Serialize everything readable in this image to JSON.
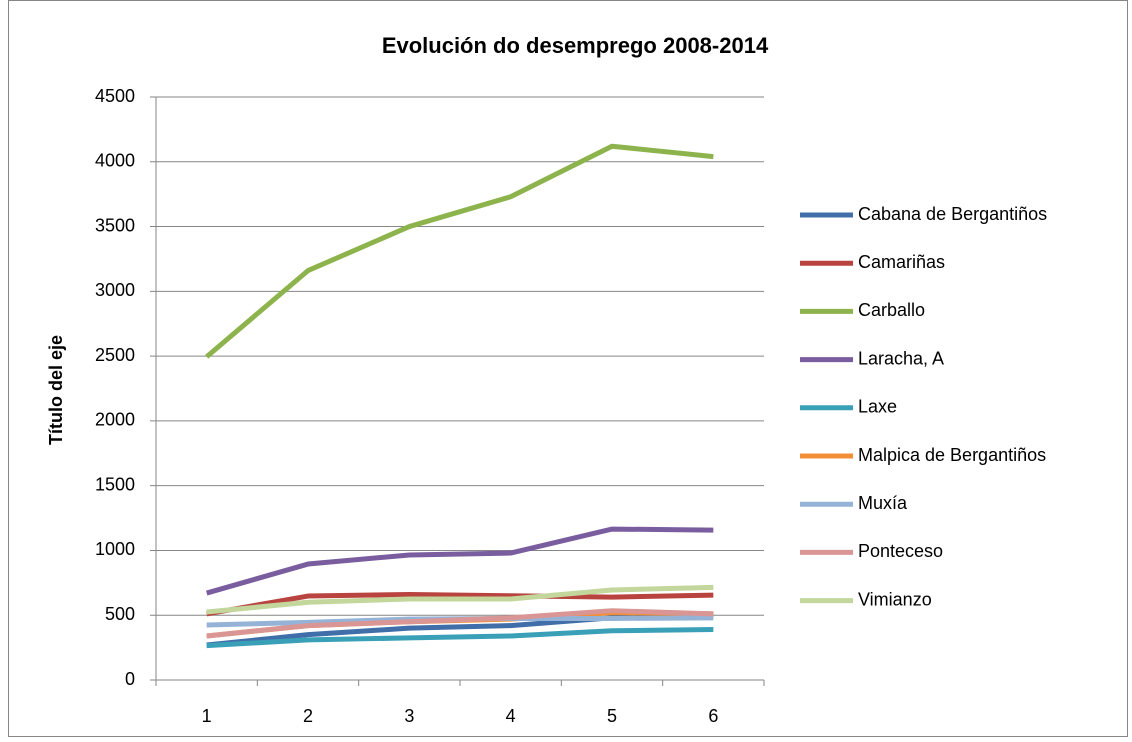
{
  "chart_data": {
    "type": "line",
    "title": "Evolución do desemprego 2008-2014",
    "y_label": "Título del eje",
    "categories": [
      "1",
      "2",
      "3",
      "4",
      "5",
      "6"
    ],
    "ylim": [
      0,
      4500
    ],
    "yticks": [
      0,
      500,
      1000,
      1500,
      2000,
      2500,
      3000,
      3500,
      4000,
      4500
    ],
    "grid": true,
    "legend": "right",
    "series": [
      {
        "name": "Cabana de Bergantiños",
        "color": "#3f6ea8",
        "values": [
          270,
          350,
          400,
          420,
          480,
          500
        ]
      },
      {
        "name": "Camariñas",
        "color": "#b9443f",
        "values": [
          510,
          648,
          660,
          650,
          640,
          655
        ]
      },
      {
        "name": "Carballo",
        "color": "#8db34d",
        "values": [
          2495,
          3160,
          3500,
          3730,
          4120,
          4040
        ]
      },
      {
        "name": "Laracha, A",
        "color": "#7a5d9e",
        "values": [
          671,
          895,
          965,
          980,
          1165,
          1157
        ]
      },
      {
        "name": "Laxe",
        "color": "#3aa0b8",
        "values": [
          265,
          310,
          325,
          340,
          380,
          390
        ]
      },
      {
        "name": "Malpica de Bergantiños",
        "color": "#f28e35",
        "values": [
          340,
          420,
          450,
          470,
          520,
          510
        ]
      },
      {
        "name": "Muxía",
        "color": "#95b3d7",
        "values": [
          425,
          445,
          470,
          475,
          475,
          480
        ]
      },
      {
        "name": "Ponteceso",
        "color": "#d99694",
        "values": [
          340,
          420,
          450,
          480,
          535,
          510
        ]
      },
      {
        "name": "Vimianzo",
        "color": "#c3d69b",
        "values": [
          525,
          600,
          625,
          625,
          695,
          715
        ]
      }
    ]
  }
}
